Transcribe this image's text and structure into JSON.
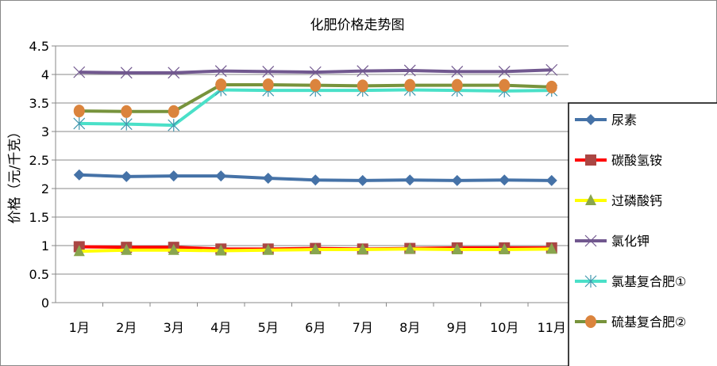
{
  "chart_data": {
    "type": "line",
    "title": "化肥价格走势图",
    "xlabel": "",
    "ylabel": "价格（元/千克）",
    "categories": [
      "1月",
      "2月",
      "3月",
      "4月",
      "5月",
      "6月",
      "7月",
      "8月",
      "9月",
      "10月",
      "11月"
    ],
    "ylim": [
      0,
      4.5
    ],
    "yticks": [
      "0",
      "0.5",
      "1",
      "1.5",
      "2",
      "2.5",
      "3",
      "3.5",
      "4",
      "4.5"
    ],
    "grid": true,
    "legend_position": "right",
    "series": [
      {
        "name": "尿素",
        "color": "#4572a7",
        "marker": "diamond",
        "values": [
          2.24,
          2.21,
          2.22,
          2.22,
          2.18,
          2.15,
          2.14,
          2.15,
          2.14,
          2.15,
          2.14
        ]
      },
      {
        "name": "碳酸氢铵",
        "color": "#ff0000",
        "marker_color": "#aa4643",
        "marker": "square",
        "values": [
          0.98,
          0.97,
          0.97,
          0.94,
          0.94,
          0.95,
          0.94,
          0.95,
          0.96,
          0.96,
          0.96
        ]
      },
      {
        "name": "过磷酸钙",
        "color": "#ffff00",
        "marker_color": "#89a54e",
        "marker": "triangle",
        "values": [
          0.9,
          0.92,
          0.92,
          0.91,
          0.92,
          0.93,
          0.93,
          0.94,
          0.93,
          0.93,
          0.94
        ]
      },
      {
        "name": "氯化钾",
        "color": "#71588f",
        "marker": "x",
        "values": [
          4.04,
          4.03,
          4.03,
          4.06,
          4.05,
          4.04,
          4.06,
          4.07,
          4.05,
          4.05,
          4.08
        ]
      },
      {
        "name": "氯基复合肥①",
        "color": "#4ae0c8",
        "marker_color": "#4198af",
        "marker": "star",
        "values": [
          3.14,
          3.13,
          3.11,
          3.73,
          3.72,
          3.72,
          3.72,
          3.73,
          3.72,
          3.71,
          3.72
        ]
      },
      {
        "name": "硫基复合肥②",
        "color": "#77933c",
        "marker_color": "#db843d",
        "marker": "circle",
        "values": [
          3.36,
          3.35,
          3.35,
          3.82,
          3.82,
          3.81,
          3.8,
          3.81,
          3.81,
          3.81,
          3.78
        ]
      }
    ]
  }
}
